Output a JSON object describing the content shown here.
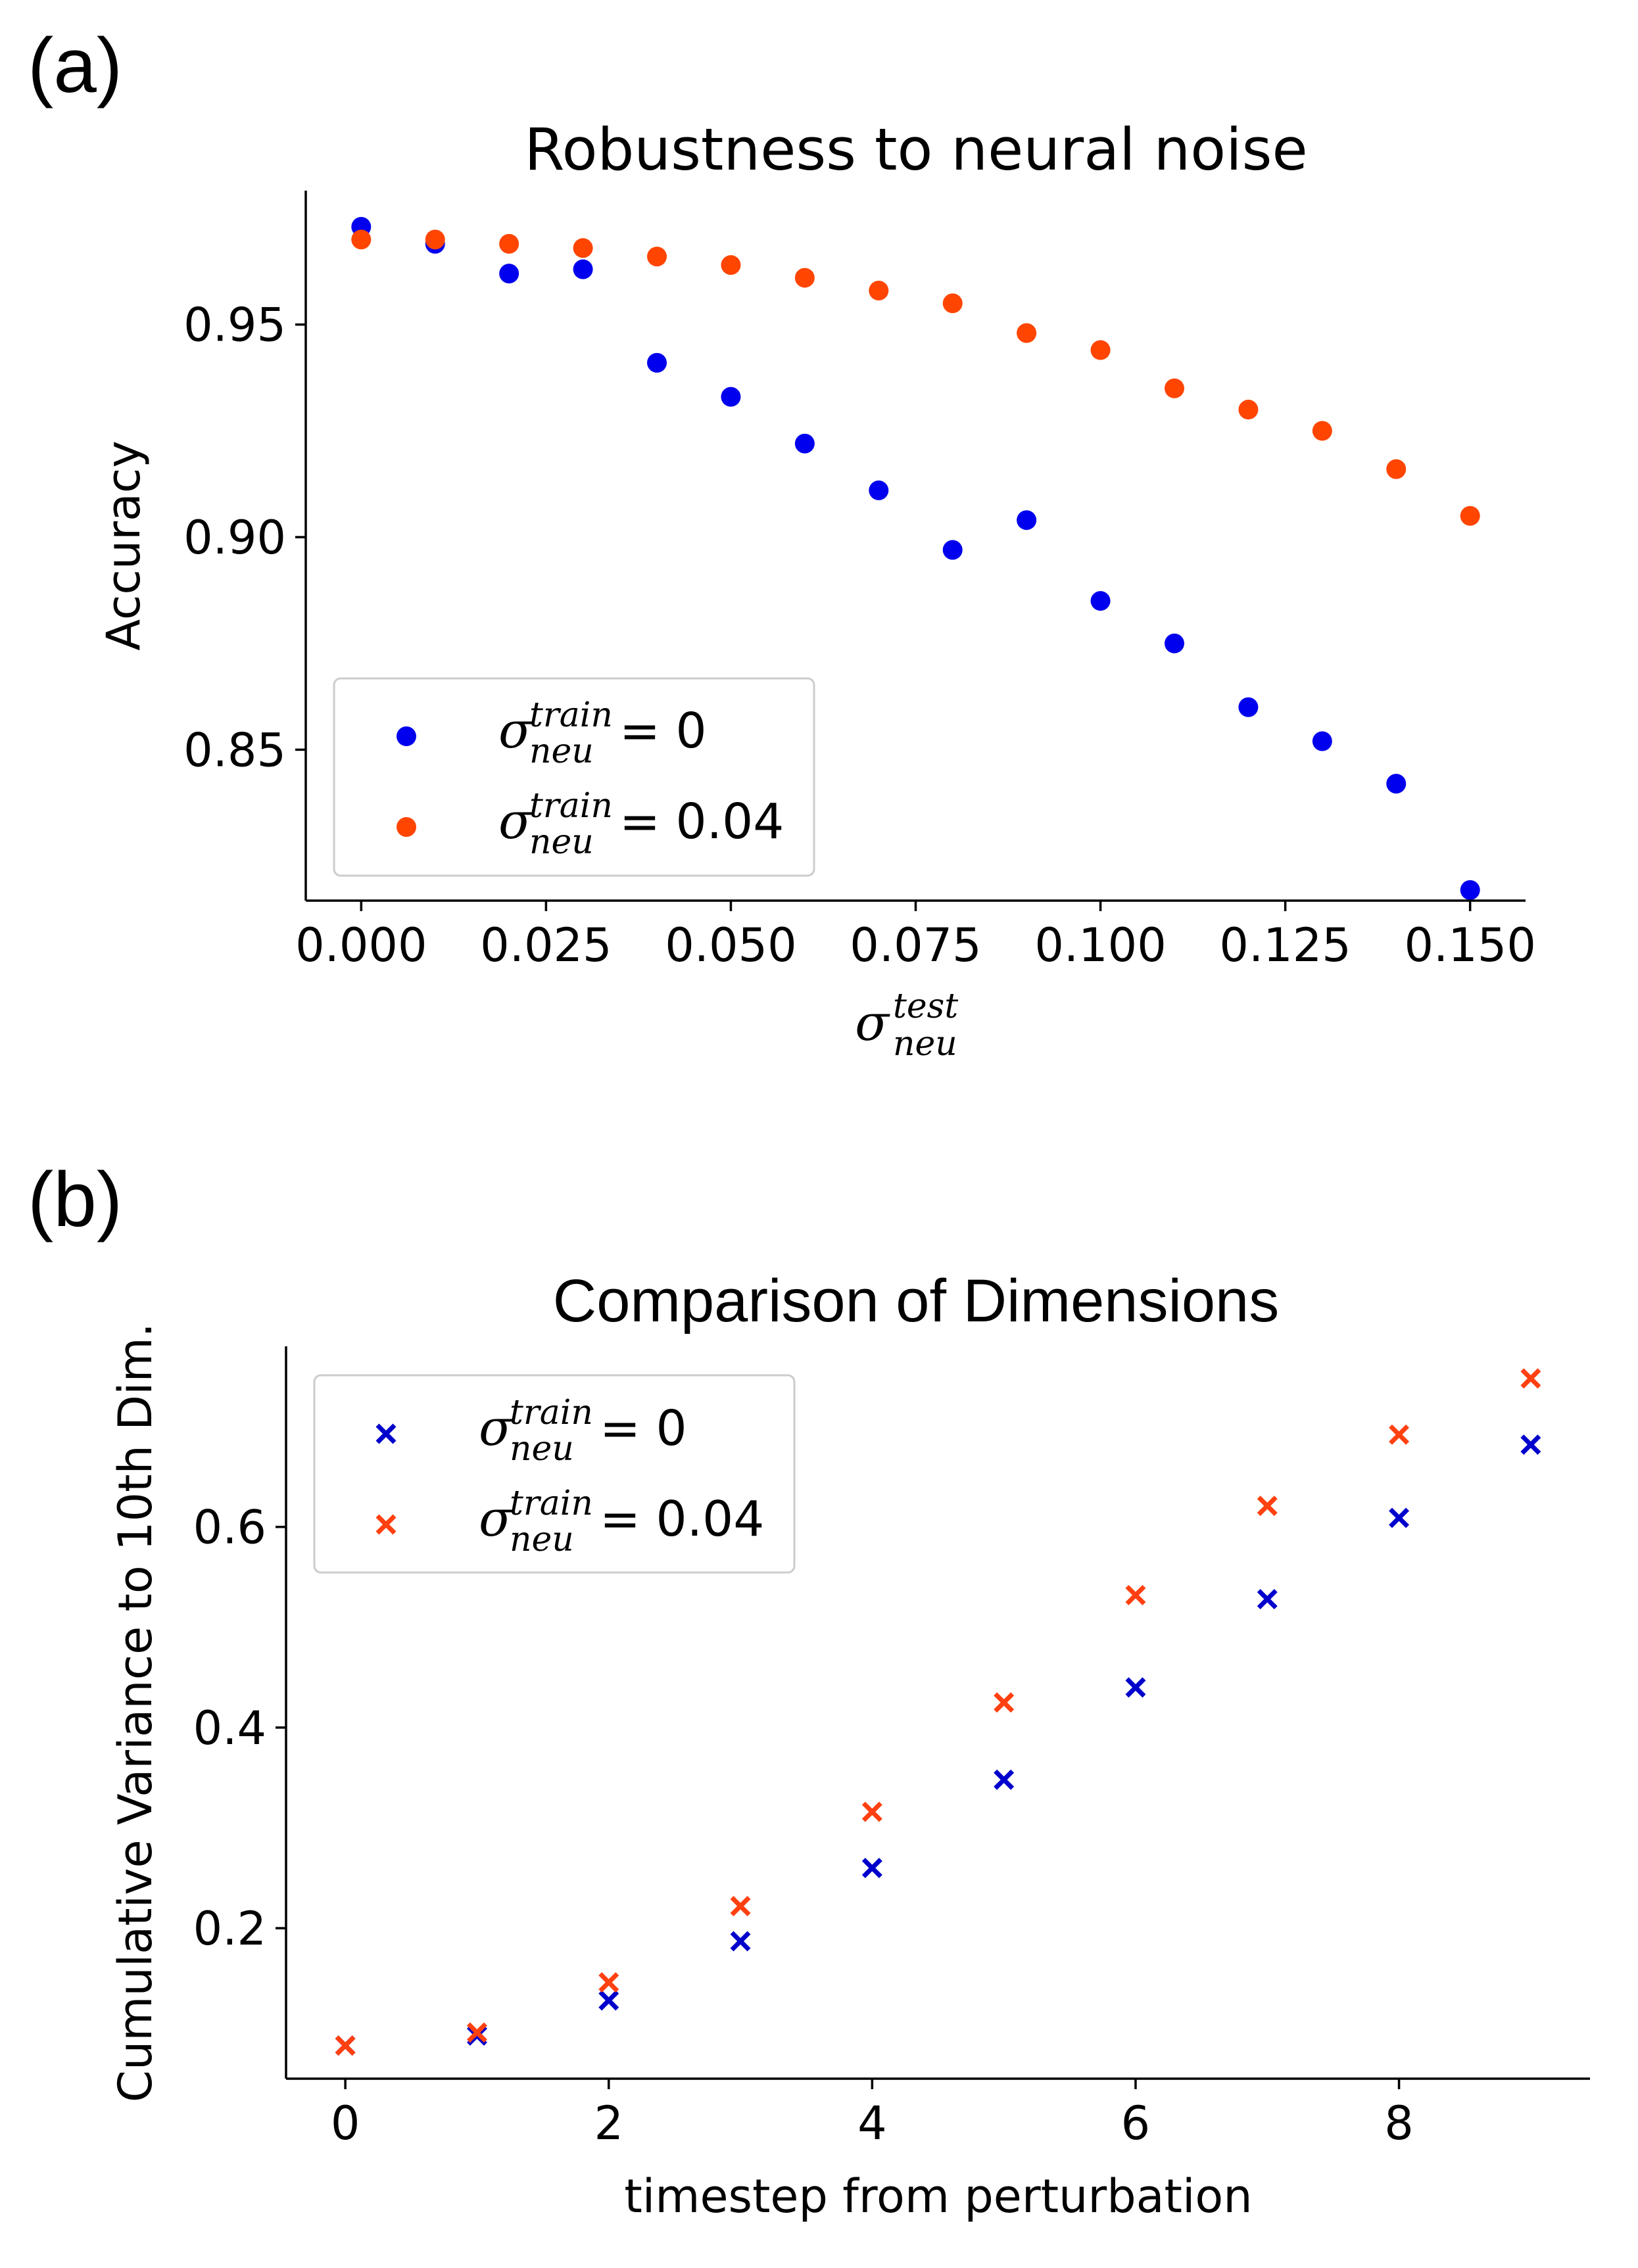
{
  "colors": {
    "blue": "#0000ee",
    "orange": "#ff4500",
    "markerblue": "#0000cc",
    "markerorange": "#ff4010"
  },
  "panel_a": {
    "label": "(a)"
  },
  "panel_b": {
    "label": "(b)"
  },
  "chart_data": [
    {
      "type": "scatter",
      "title": "Robustness to neural noise",
      "xlabel": "σ_neu^test",
      "xlabel_base": "σ",
      "xlabel_sup": "test",
      "xlabel_sub": "neu",
      "ylabel": "Accuracy",
      "xlim": [
        -0.0075,
        0.1575
      ],
      "ylim": [
        0.8145,
        0.9815
      ],
      "xticks": [
        0.0,
        0.025,
        0.05,
        0.075,
        0.1,
        0.125,
        0.15
      ],
      "xtick_labels": [
        "0.000",
        "0.025",
        "0.050",
        "0.075",
        "0.100",
        "0.125",
        "0.150"
      ],
      "yticks": [
        0.85,
        0.9,
        0.95
      ],
      "ytick_labels": [
        "0.85",
        "0.90",
        "0.95"
      ],
      "marker": "circle",
      "legend_position": "lower-left",
      "series": [
        {
          "name": "σ_neu^train = 0",
          "label_sup": "train",
          "label_sub": "neu",
          "label_value": "= 0",
          "color": "#0000ee",
          "x": [
            0.0,
            0.01,
            0.02,
            0.03,
            0.04,
            0.05,
            0.06,
            0.07,
            0.08,
            0.09,
            0.1,
            0.11,
            0.12,
            0.13,
            0.14,
            0.15
          ],
          "y": [
            0.973,
            0.969,
            0.962,
            0.963,
            0.941,
            0.933,
            0.922,
            0.911,
            0.897,
            0.904,
            0.885,
            0.875,
            0.86,
            0.852,
            0.842,
            0.817
          ]
        },
        {
          "name": "σ_neu^train = 0.04",
          "label_sup": "train",
          "label_sub": "neu",
          "label_value": "= 0.04",
          "color": "#ff4500",
          "x": [
            0.0,
            0.01,
            0.02,
            0.03,
            0.04,
            0.05,
            0.06,
            0.07,
            0.08,
            0.09,
            0.1,
            0.11,
            0.12,
            0.13,
            0.14,
            0.15
          ],
          "y": [
            0.97,
            0.97,
            0.969,
            0.968,
            0.966,
            0.964,
            0.961,
            0.958,
            0.955,
            0.948,
            0.944,
            0.935,
            0.93,
            0.925,
            0.916,
            0.905
          ]
        }
      ]
    },
    {
      "type": "scatter",
      "title": "Comparison of Dimensions",
      "xlabel": "timestep from perturbation",
      "ylabel": "Cumulative Variance to 10th Dim.",
      "xlim": [
        -0.45,
        9.45
      ],
      "ylim": [
        0.05,
        0.78
      ],
      "xticks": [
        0,
        2,
        4,
        6,
        8
      ],
      "xtick_labels": [
        "0",
        "2",
        "4",
        "6",
        "8"
      ],
      "yticks": [
        0.2,
        0.4,
        0.6
      ],
      "ytick_labels": [
        "0.2",
        "0.4",
        "0.6"
      ],
      "marker": "x",
      "legend_position": "upper-left",
      "series": [
        {
          "name": "σ_neu^train = 0",
          "label_sup": "train",
          "label_sub": "neu",
          "label_value": "= 0",
          "color": "#0000cc",
          "x": [
            0,
            1,
            2,
            3,
            4,
            5,
            6,
            7,
            8,
            9
          ],
          "y": [
            0.083,
            0.093,
            0.128,
            0.187,
            0.26,
            0.348,
            0.44,
            0.528,
            0.609,
            0.682
          ]
        },
        {
          "name": "σ_neu^train = 0.04",
          "label_sup": "train",
          "label_sub": "neu",
          "label_value": "= 0.04",
          "color": "#ff4010",
          "x": [
            0,
            1,
            2,
            3,
            4,
            5,
            6,
            7,
            8,
            9
          ],
          "y": [
            0.083,
            0.096,
            0.146,
            0.222,
            0.316,
            0.425,
            0.532,
            0.621,
            0.692,
            0.748
          ]
        }
      ]
    }
  ]
}
